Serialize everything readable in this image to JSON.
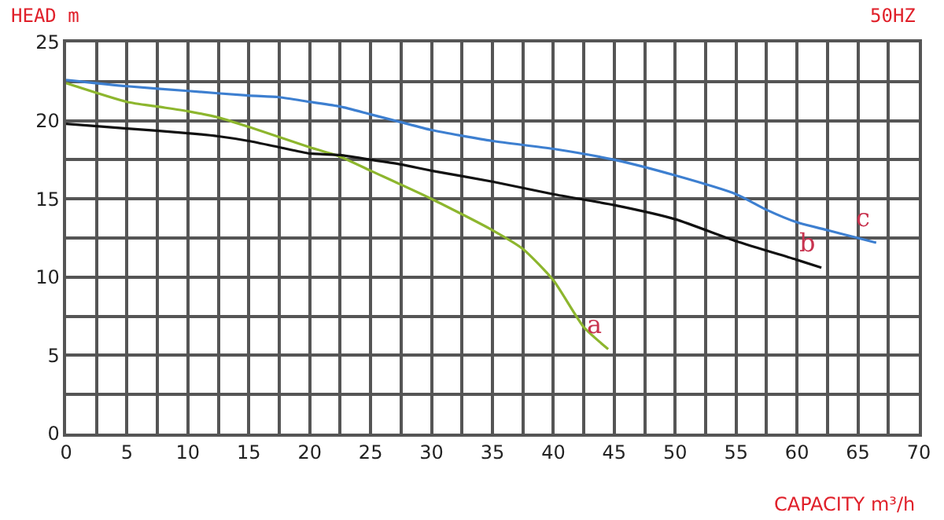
{
  "chart_data": {
    "type": "line",
    "xlabel": "CAPACITY m³/h",
    "ylabel": "HEAD m",
    "annotations": [
      "50HZ"
    ],
    "xlim": [
      0,
      70
    ],
    "xticks": [
      0,
      5,
      10,
      15,
      20,
      25,
      30,
      35,
      40,
      45,
      50,
      55,
      60,
      65,
      70
    ],
    "ylim": [
      0,
      25
    ],
    "yticks": [
      0,
      5,
      10,
      15,
      20,
      25
    ],
    "grid": true,
    "legend": false,
    "marker": "none",
    "line_style": "solid",
    "series": [
      {
        "name": "a",
        "color": "#8db62e",
        "x": [
          0,
          5,
          7.5,
          10,
          12.5,
          15,
          20,
          22.5,
          25,
          30,
          35,
          37.5,
          40,
          42.5,
          44.5
        ],
        "values": [
          22.4,
          21.2,
          20.9,
          20.6,
          20.2,
          19.6,
          18.3,
          17.7,
          16.8,
          15,
          13,
          11.8,
          9.8,
          6.8,
          5.4
        ]
      },
      {
        "name": "b",
        "color": "#111111",
        "x": [
          0,
          5,
          10,
          12.5,
          15,
          17.5,
          20,
          22.5,
          25,
          27.5,
          30,
          35,
          40,
          45,
          50,
          55,
          60,
          62
        ],
        "values": [
          19.8,
          19.5,
          19.2,
          19.0,
          18.7,
          18.3,
          17.9,
          17.8,
          17.5,
          17.2,
          16.8,
          16.1,
          15.3,
          14.6,
          13.7,
          12.3,
          11.1,
          10.6
        ]
      },
      {
        "name": "c",
        "color": "#3d7fd0",
        "x": [
          0,
          5,
          10,
          15,
          17.5,
          20,
          22.5,
          25,
          27.5,
          30,
          35,
          40,
          45,
          50,
          55,
          57.5,
          60,
          62.5,
          65,
          66.5
        ],
        "values": [
          22.6,
          22.2,
          21.9,
          21.6,
          21.5,
          21.2,
          20.9,
          20.4,
          19.9,
          19.4,
          18.7,
          18.2,
          17.5,
          16.5,
          15.3,
          14.3,
          13.5,
          13,
          12.5,
          12.2
        ]
      }
    ]
  }
}
